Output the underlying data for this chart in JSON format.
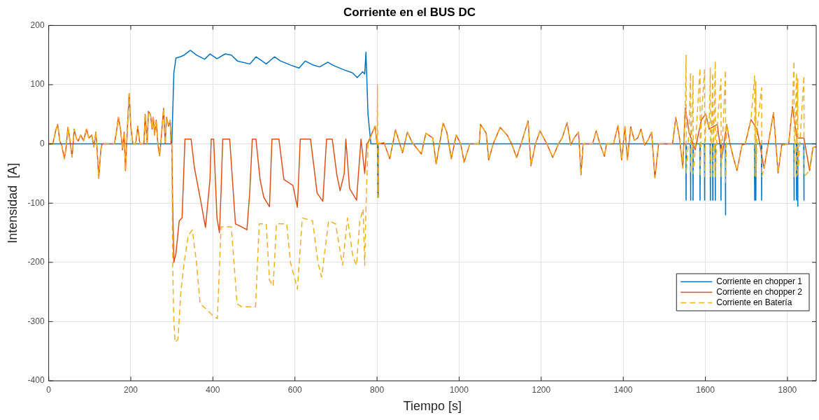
{
  "chart_data": {
    "type": "line",
    "title": "Corriente en el BUS DC",
    "xlabel": "Tiempo [s]",
    "ylabel": "Intensidad  [A]",
    "xlim": [
      0,
      1870
    ],
    "ylim": [
      -400,
      200
    ],
    "xticks": [
      0,
      200,
      400,
      600,
      800,
      1000,
      1200,
      1400,
      1600,
      1800
    ],
    "yticks": [
      -400,
      -300,
      -200,
      -100,
      0,
      100,
      200
    ],
    "grid": true,
    "legend": "right",
    "series": [
      {
        "name": "Corriente en chopper 1",
        "color": "#0072bd",
        "line_style": "solid",
        "x": [
          0,
          300,
          305,
          310,
          320,
          330,
          345,
          360,
          380,
          393,
          410,
          430,
          445,
          460,
          490,
          505,
          520,
          530,
          550,
          565,
          590,
          610,
          625,
          645,
          660,
          680,
          695,
          720,
          740,
          752,
          765,
          770,
          773,
          778,
          785,
          801,
          802,
          803,
          1552.5,
          1553,
          1553.5,
          1563.5,
          1564,
          1564.5,
          1569.5,
          1570,
          1570.5,
          1586.5,
          1587,
          1587.5,
          1597.5,
          1598,
          1598.5,
          1611.5,
          1612,
          1612.5,
          1617.5,
          1618,
          1618.5,
          1623.5,
          1624,
          1624.5,
          1637.5,
          1638,
          1638.5,
          1648.5,
          1649,
          1649.5,
          1719.5,
          1720,
          1720.5,
          1722.5,
          1723,
          1723.5,
          1736.5,
          1737,
          1737.5,
          1815.5,
          1816,
          1816.5,
          1821.5,
          1822,
          1822.5,
          1824.5,
          1825,
          1825.5,
          1839.5,
          1840,
          1840.5,
          1870
        ],
        "values": [
          0,
          0,
          120,
          145,
          147,
          150,
          158,
          150,
          143,
          152,
          144,
          152,
          150,
          140,
          135,
          147,
          140,
          135,
          147,
          140,
          133,
          128,
          140,
          133,
          130,
          138,
          132,
          125,
          120,
          112,
          122,
          118,
          155,
          50,
          0,
          0,
          -90,
          0,
          0,
          -95,
          0,
          0,
          -95,
          0,
          0,
          -95,
          0,
          0,
          -95,
          0,
          0,
          -95,
          0,
          0,
          -95,
          0,
          0,
          -95,
          0,
          0,
          -95,
          0,
          0,
          -95,
          0,
          0,
          -120,
          0,
          0,
          -95,
          0,
          0,
          -95,
          0,
          0,
          -95,
          0,
          0,
          -95,
          0,
          0,
          -95,
          0,
          0,
          -105,
          0,
          0,
          -95,
          0,
          0
        ]
      },
      {
        "name": "Corriente en chopper 2",
        "color": "#d95319",
        "line_style": "solid",
        "x": [
          0,
          10,
          18,
          22,
          27,
          32,
          38,
          42,
          47,
          52,
          57,
          62,
          67,
          72,
          78,
          85,
          92,
          98,
          105,
          110,
          115,
          118,
          122,
          127,
          130,
          160,
          165,
          170,
          175,
          180,
          184,
          187,
          192,
          196,
          200,
          205,
          212,
          217,
          222,
          232,
          235,
          240,
          243,
          248,
          252,
          255,
          258,
          262,
          266,
          270,
          273,
          280,
          284,
          287,
          292,
          296,
          298,
          300,
          302,
          305,
          310,
          318,
          325,
          332,
          347,
          355,
          370,
          382,
          393,
          396,
          402,
          410,
          416,
          420,
          424,
          441,
          455,
          470,
          483,
          490,
          496,
          505,
          515,
          524,
          538,
          544,
          561,
          573,
          595,
          606,
          613,
          638,
          654,
          668,
          677,
          691,
          702,
          710,
          720,
          724,
          733,
          750,
          761,
          770,
          775,
          778,
          795,
          800,
          817,
          831,
          845,
          862,
          874,
          885,
          908,
          919,
          936,
          944,
          961,
          970,
          981,
          993,
          1004,
          1012,
          1026,
          1049,
          1052,
          1066,
          1072,
          1083,
          1100,
          1117,
          1128,
          1140,
          1151,
          1168,
          1175,
          1186,
          1197,
          1214,
          1228,
          1242,
          1251,
          1263,
          1272,
          1280,
          1291,
          1297,
          1302,
          1325,
          1334,
          1342,
          1354,
          1359,
          1376,
          1387,
          1396,
          1404,
          1410,
          1418,
          1427,
          1435,
          1443,
          1452,
          1460,
          1469,
          1477,
          1486,
          1520,
          1528,
          1537,
          1545,
          1551,
          1560,
          1575,
          1590,
          1601,
          1609,
          1629,
          1640,
          1652,
          1660,
          1669,
          1677,
          1689,
          1697,
          1711,
          1726,
          1743,
          1766,
          1777,
          1786,
          1803,
          1812,
          1823,
          1840,
          1854,
          1862,
          1870
        ],
        "values": [
          0,
          0,
          25,
          33,
          5,
          -3,
          -25,
          -8,
          28,
          5,
          -22,
          25,
          10,
          5,
          15,
          5,
          25,
          10,
          15,
          -5,
          20,
          -10,
          -58,
          -10,
          0,
          0,
          20,
          45,
          25,
          -10,
          20,
          -45,
          30,
          85,
          30,
          0,
          0,
          30,
          0,
          0,
          50,
          0,
          55,
          50,
          25,
          45,
          15,
          40,
          0,
          -20,
          0,
          60,
          0,
          45,
          30,
          40,
          0,
          0,
          -100,
          -200,
          -185,
          -130,
          -125,
          8,
          8,
          -40,
          -95,
          -141,
          -60,
          8,
          8,
          -125,
          -150,
          -80,
          8,
          8,
          -135,
          -140,
          -145,
          -80,
          8,
          8,
          -60,
          -90,
          -106,
          8,
          8,
          -60,
          -70,
          -107,
          8,
          8,
          -83,
          -97,
          8,
          8,
          -52,
          -79,
          -50,
          8,
          -75,
          -95,
          8,
          -50,
          0,
          2,
          30,
          0,
          2,
          -25,
          24,
          -15,
          20,
          3,
          -17,
          18,
          10,
          -34,
          35,
          20,
          -25,
          15,
          0,
          -31,
          0,
          0,
          33,
          18,
          -27,
          0,
          28,
          15,
          0,
          -23,
          0,
          39,
          -37,
          0,
          22,
          0,
          -23,
          0,
          10,
          36,
          -2,
          10,
          20,
          -52,
          0,
          0,
          22,
          2,
          -21,
          0,
          0,
          31,
          -27,
          29,
          -27,
          29,
          6,
          10,
          25,
          -2,
          6,
          20,
          -57,
          0,
          0,
          45,
          10,
          -41,
          61,
          20,
          -10,
          40,
          51,
          25,
          33,
          -25,
          33,
          0,
          -25,
          -45,
          -2,
          0,
          41,
          25,
          -41,
          53,
          -49,
          -2,
          0,
          63,
          10,
          10,
          -45,
          -6,
          -5
        ]
      },
      {
        "name": "Corriente en Batería",
        "color": "#edb120",
        "line_style": "dashed",
        "x": [
          0,
          10,
          18,
          22,
          27,
          32,
          38,
          42,
          47,
          52,
          57,
          62,
          67,
          72,
          78,
          85,
          92,
          98,
          105,
          110,
          115,
          118,
          122,
          127,
          130,
          160,
          165,
          170,
          175,
          180,
          184,
          187,
          192,
          196,
          200,
          205,
          212,
          217,
          222,
          232,
          235,
          240,
          243,
          248,
          252,
          255,
          258,
          262,
          266,
          270,
          273,
          280,
          284,
          287,
          292,
          296,
          298,
          300,
          302,
          305,
          308,
          315,
          322,
          330,
          340,
          350,
          360,
          369,
          386,
          400,
          411,
          420,
          445,
          459,
          470,
          504,
          513,
          530,
          538,
          547,
          555,
          580,
          589,
          606,
          618,
          643,
          656,
          665,
          682,
          699,
          711,
          716,
          728,
          741,
          750,
          758,
          766,
          770,
          773,
          778,
          795,
          800,
          801,
          802,
          803,
          817,
          831,
          845,
          862,
          874,
          885,
          908,
          919,
          936,
          944,
          961,
          970,
          981,
          993,
          1004,
          1012,
          1026,
          1049,
          1052,
          1066,
          1072,
          1083,
          1100,
          1117,
          1128,
          1140,
          1151,
          1168,
          1175,
          1186,
          1197,
          1214,
          1228,
          1242,
          1251,
          1263,
          1272,
          1280,
          1291,
          1297,
          1302,
          1325,
          1334,
          1342,
          1354,
          1359,
          1376,
          1387,
          1396,
          1404,
          1410,
          1418,
          1427,
          1435,
          1443,
          1452,
          1460,
          1469,
          1477,
          1486,
          1520,
          1528,
          1537,
          1545,
          1551,
          1553,
          1553.5,
          1560,
          1564,
          1564.5,
          1570,
          1570.5,
          1575,
          1587,
          1587.5,
          1590,
          1598,
          1598.5,
          1601,
          1609,
          1612,
          1612.5,
          1618,
          1618.5,
          1624,
          1624.5,
          1629,
          1638,
          1638.5,
          1640,
          1649,
          1649.5,
          1652,
          1660,
          1669,
          1677,
          1689,
          1697,
          1711,
          1720,
          1720.5,
          1723,
          1723.5,
          1726,
          1737,
          1737.5,
          1743,
          1766,
          1777,
          1786,
          1803,
          1812,
          1816,
          1816.5,
          1822,
          1822.5,
          1825,
          1825.5,
          1840,
          1840.5,
          1854,
          1862,
          1870
        ],
        "values": [
          0,
          0,
          25,
          33,
          5,
          -3,
          -25,
          -8,
          28,
          5,
          -22,
          25,
          10,
          5,
          15,
          5,
          25,
          10,
          15,
          -5,
          20,
          -10,
          -58,
          -10,
          0,
          0,
          20,
          45,
          25,
          -10,
          20,
          -45,
          30,
          85,
          30,
          0,
          0,
          30,
          0,
          0,
          50,
          0,
          55,
          50,
          25,
          45,
          15,
          40,
          0,
          -20,
          0,
          60,
          0,
          45,
          30,
          40,
          0,
          0,
          -200,
          -300,
          -335,
          -330,
          -250,
          -200,
          -155,
          -145,
          -200,
          -270,
          -280,
          -290,
          -295,
          -140,
          -140,
          -270,
          -275,
          -275,
          -135,
          -135,
          -230,
          -240,
          -135,
          -135,
          -200,
          -245,
          -125,
          -130,
          -200,
          -225,
          -130,
          -135,
          -185,
          -205,
          -125,
          -190,
          -205,
          -130,
          -110,
          -205,
          -110,
          0,
          30,
          0,
          100,
          -90,
          0,
          2,
          -25,
          24,
          -15,
          20,
          3,
          -17,
          18,
          10,
          -34,
          35,
          20,
          -25,
          15,
          0,
          -31,
          0,
          0,
          33,
          18,
          -27,
          0,
          28,
          15,
          0,
          -23,
          0,
          39,
          -37,
          0,
          22,
          0,
          -23,
          0,
          10,
          36,
          -2,
          10,
          20,
          -52,
          0,
          0,
          22,
          2,
          -21,
          0,
          0,
          31,
          -27,
          29,
          -27,
          29,
          6,
          10,
          25,
          -2,
          6,
          20,
          -57,
          0,
          0,
          45,
          10,
          -41,
          61,
          150,
          -50,
          20,
          120,
          -50,
          115,
          -50,
          -10,
          128,
          -55,
          40,
          125,
          -55,
          51,
          25,
          128,
          -55,
          120,
          -55,
          140,
          -55,
          33,
          110,
          -55,
          -25,
          125,
          -65,
          33,
          0,
          -25,
          -45,
          -2,
          0,
          41,
          115,
          -55,
          105,
          -55,
          25,
          95,
          -55,
          -41,
          53,
          -49,
          -2,
          0,
          63,
          140,
          -55,
          120,
          -55,
          110,
          -55,
          115,
          -55,
          -45,
          -6,
          -5
        ]
      }
    ]
  }
}
